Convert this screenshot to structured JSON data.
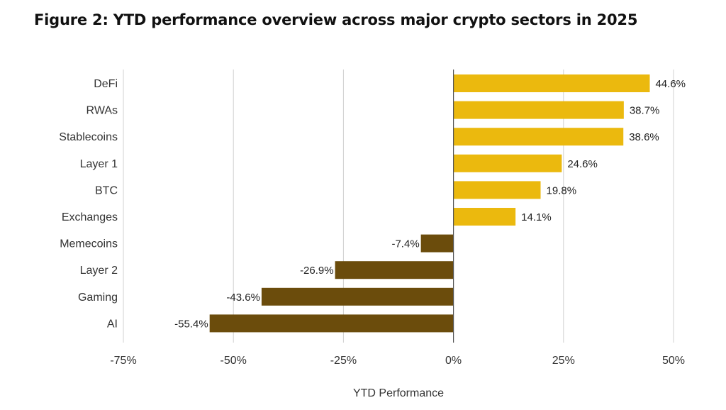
{
  "title": "Figure 2: YTD performance overview across major crypto sectors in 2025",
  "chart_data": {
    "type": "bar",
    "orientation": "horizontal",
    "title": "Figure 2: YTD performance overview across major crypto sectors in 2025",
    "xlabel": "YTD Performance",
    "ylabel": "",
    "xlim": [
      -75,
      50
    ],
    "xticks": [
      -75,
      -50,
      -25,
      0,
      25,
      50
    ],
    "xtick_labels": [
      "-75%",
      "-50%",
      "-25%",
      "0%",
      "25%",
      "50%"
    ],
    "grid": "vertical",
    "categories": [
      "DeFi",
      "RWAs",
      "Stablecoins",
      "Layer 1",
      "BTC",
      "Exchanges",
      "Memecoins",
      "Layer 2",
      "Gaming",
      "AI"
    ],
    "values": [
      44.6,
      38.7,
      38.6,
      24.6,
      19.8,
      14.1,
      -7.4,
      -26.9,
      -43.6,
      -55.4
    ],
    "value_labels": [
      "44.6%",
      "38.7%",
      "38.6%",
      "24.6%",
      "19.8%",
      "14.1%",
      "-7.4%",
      "-26.9%",
      "-43.6%",
      "-55.4%"
    ],
    "colors": {
      "positive": "#EBB90E",
      "negative": "#6B4C0C",
      "grid": "#D0D0D0",
      "zero_line": "#555555"
    }
  }
}
